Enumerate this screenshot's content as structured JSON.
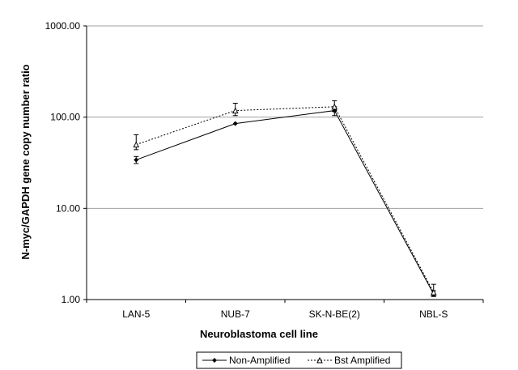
{
  "chart_data": {
    "type": "line",
    "y_scale": "log",
    "categories": [
      "LAN-5",
      "NUB-7",
      "SK-N-BE(2)",
      "NBL-S"
    ],
    "ylim": [
      1,
      1000
    ],
    "y_ticks": [
      "1.00",
      "10.00",
      "100.00",
      "1000.00"
    ],
    "xlabel": "Neuroblastoma cell line",
    "ylabel": "N-myc/GAPDH gene copy number ratio",
    "grid": "horizontal",
    "legend_position": "bottom",
    "series": [
      {
        "name": "Non-Amplified",
        "values": [
          34,
          85,
          118,
          1.15
        ],
        "err_low": [
          31,
          85,
          104,
          1.08
        ],
        "err_high": [
          37,
          85,
          130,
          1.25
        ],
        "color": "#000000",
        "line": "solid",
        "marker": "diamond"
      },
      {
        "name": "Bst Amplified",
        "values": [
          50,
          118,
          130,
          1.2
        ],
        "err_low": [
          44,
          104,
          115,
          1.1
        ],
        "err_high": [
          64,
          142,
          151,
          1.47
        ],
        "color": "#000000",
        "line": "dotted",
        "marker": "triangle"
      }
    ]
  }
}
